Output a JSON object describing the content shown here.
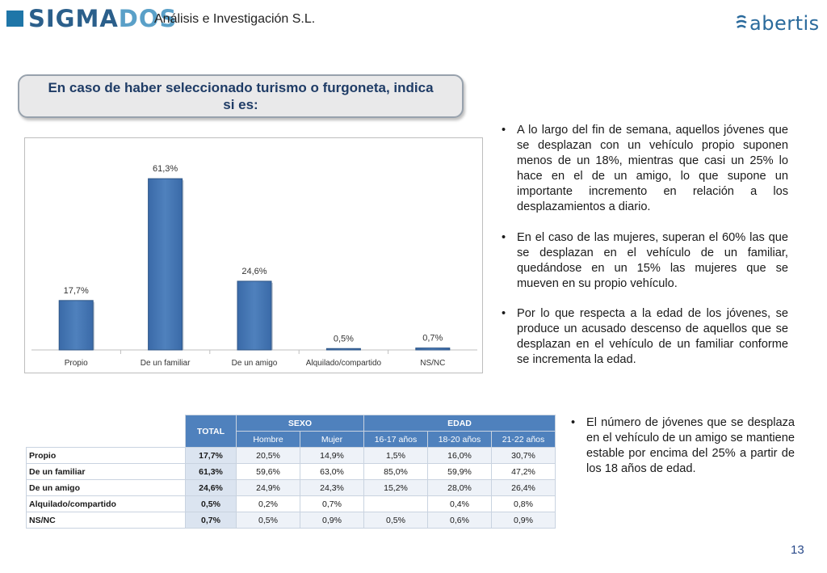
{
  "header": {
    "brand_part1": "SIGMA",
    "brand_part2": "DOS",
    "subtitle": "Análisis e Investigación S.L.",
    "partner_logo": "abertis",
    "partner_icon": "abertis-swirl-icon"
  },
  "title": "En caso de haber seleccionado turismo o furgoneta, indica si es:",
  "chart_data": {
    "type": "bar",
    "categories": [
      "Propio",
      "De un familiar",
      "De un amigo",
      "Alquilado/compartido",
      "NS/NC"
    ],
    "values": [
      17.7,
      61.3,
      24.6,
      0.5,
      0.7
    ],
    "value_labels": [
      "17,7%",
      "61,3%",
      "24,6%",
      "0,5%",
      "0,7%"
    ],
    "unit": "%",
    "ylim": [
      0,
      70
    ],
    "bar_color": "#4f81bd",
    "title": "",
    "xlabel": "",
    "ylabel": ""
  },
  "bullets": [
    "A lo largo del fin de semana, aquellos jóvenes que se desplazan con un vehículo propio suponen menos de un 18%, mientras que casi un 25% lo hace en el de un amigo, lo que supone un importante incremento en relación a los desplazamientos a diario.",
    "En el caso de las mujeres, superan el 60% las que se desplazan en el vehículo de un familiar, quedándose en un 15% las mujeres que se mueven en su propio vehículo.",
    "Por lo que respecta a la edad de los jóvenes, se produce un acusado descenso de aquellos que se desplazan en el vehículo de un familiar conforme se incrementa la edad.",
    "El número de jóvenes que se desplaza en el vehículo de un amigo se mantiene estable por encima del 25% a partir de los 18 años de edad."
  ],
  "bullet_marker": "•",
  "table": {
    "total_header": "TOTAL",
    "group_sexo": "SEXO",
    "group_edad": "EDAD",
    "sub_headers": [
      "Hombre",
      "Mujer",
      "16-17 años",
      "18-20 años",
      "21-22 años"
    ],
    "rows": [
      {
        "label": "Propio",
        "total": "17,7%",
        "cells": [
          "20,5%",
          "14,9%",
          "1,5%",
          "16,0%",
          "30,7%"
        ]
      },
      {
        "label": "De un familiar",
        "total": "61,3%",
        "cells": [
          "59,6%",
          "63,0%",
          "85,0%",
          "59,9%",
          "47,2%"
        ]
      },
      {
        "label": "De un amigo",
        "total": "24,6%",
        "cells": [
          "24,9%",
          "24,3%",
          "15,2%",
          "28,0%",
          "26,4%"
        ]
      },
      {
        "label": "Alquilado/compartido",
        "total": "0,5%",
        "cells": [
          "0,2%",
          "0,7%",
          "",
          "0,4%",
          "0,8%"
        ]
      },
      {
        "label": "NS/NC",
        "total": "0,7%",
        "cells": [
          "0,5%",
          "0,9%",
          "0,5%",
          "0,6%",
          "0,9%"
        ]
      }
    ]
  },
  "page_number": "13",
  "colors": {
    "title_text": "#1f3c66",
    "table_header": "#4f81bd",
    "brand_dark": "#2b5f8b",
    "brand_light": "#5aa0c8"
  }
}
